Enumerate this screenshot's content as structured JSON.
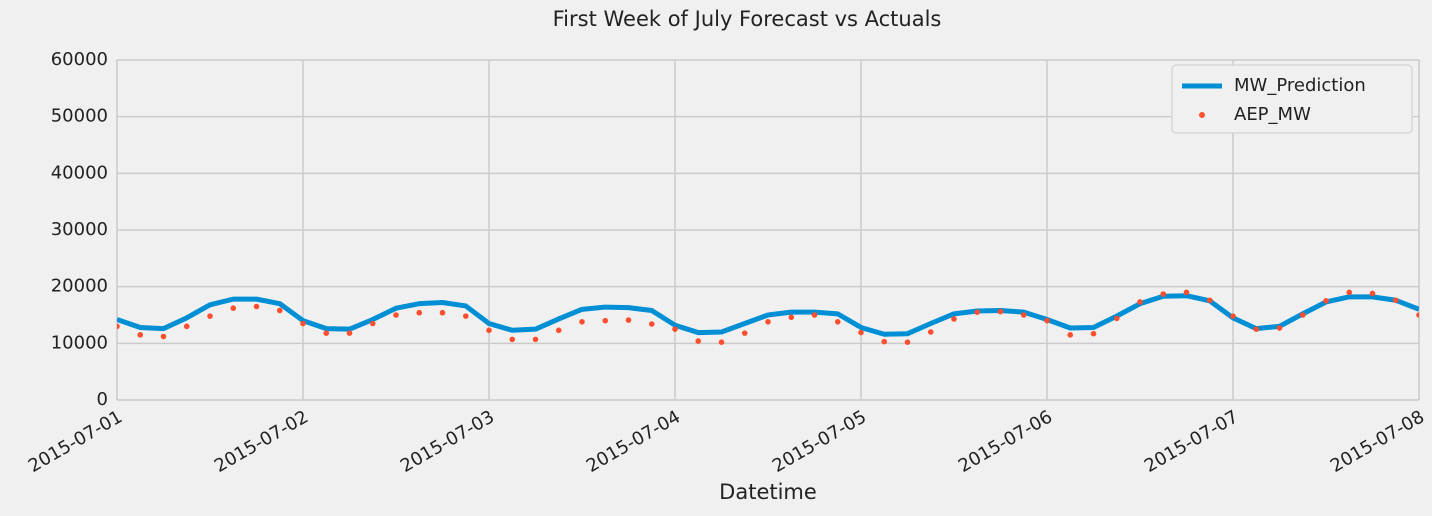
{
  "chart_data": {
    "type": "line",
    "title": "First Week of July Forecast vs Actuals",
    "xlabel": "Datetime",
    "x": [
      0,
      3,
      6,
      9,
      12,
      15,
      18,
      21,
      24,
      27,
      30,
      33,
      36,
      39,
      42,
      45,
      48,
      51,
      54,
      57,
      60,
      63,
      66,
      69,
      72,
      75,
      78,
      81,
      84,
      87,
      90,
      93,
      96,
      99,
      102,
      105,
      108,
      111,
      114,
      117,
      120,
      123,
      126,
      129,
      132,
      135,
      138,
      141,
      144,
      147,
      150,
      153,
      156,
      159,
      162,
      165,
      168
    ],
    "xlim": [
      0,
      168
    ],
    "xticks": [
      {
        "value": 0,
        "label": "2015-07-01"
      },
      {
        "value": 24,
        "label": "2015-07-02"
      },
      {
        "value": 48,
        "label": "2015-07-03"
      },
      {
        "value": 72,
        "label": "2015-07-04"
      },
      {
        "value": 96,
        "label": "2015-07-05"
      },
      {
        "value": 120,
        "label": "2015-07-06"
      },
      {
        "value": 144,
        "label": "2015-07-07"
      },
      {
        "value": 168,
        "label": "2015-07-08"
      }
    ],
    "ylim": [
      0,
      60000
    ],
    "yticks": [
      0,
      10000,
      20000,
      30000,
      40000,
      50000,
      60000
    ],
    "grid": true,
    "legend": "upper right",
    "series": [
      {
        "name": "MW_Prediction",
        "color": "#008fd5",
        "style": "line",
        "values": [
          14200,
          12800,
          12600,
          14500,
          16800,
          17800,
          17800,
          17000,
          14000,
          12600,
          12500,
          14200,
          16200,
          17000,
          17200,
          16600,
          13500,
          12300,
          12500,
          14300,
          16000,
          16400,
          16300,
          15800,
          13200,
          11900,
          12000,
          13500,
          15000,
          15500,
          15500,
          15200,
          12800,
          11600,
          11700,
          13500,
          15200,
          15700,
          15800,
          15500,
          14200,
          12700,
          12800,
          14800,
          17000,
          18300,
          18400,
          17500,
          14500,
          12600,
          13000,
          15200,
          17300,
          18200,
          18200,
          17600,
          16000
        ]
      },
      {
        "name": "AEP_MW",
        "color": "#fc4f30",
        "style": "dot",
        "values": [
          13000,
          11500,
          11200,
          13000,
          14800,
          16200,
          16500,
          15800,
          13500,
          11800,
          11800,
          13500,
          15000,
          15400,
          15400,
          14800,
          12300,
          10700,
          10700,
          12300,
          13800,
          14000,
          14100,
          13400,
          12500,
          10400,
          10200,
          11800,
          13800,
          14600,
          15000,
          13800,
          11900,
          10300,
          10200,
          12000,
          14300,
          15500,
          15600,
          15000,
          14000,
          11500,
          11700,
          14400,
          17300,
          18700,
          19000,
          17600,
          14800,
          12500,
          12700,
          15000,
          17500,
          19000,
          18800,
          17600,
          15000
        ]
      }
    ]
  }
}
